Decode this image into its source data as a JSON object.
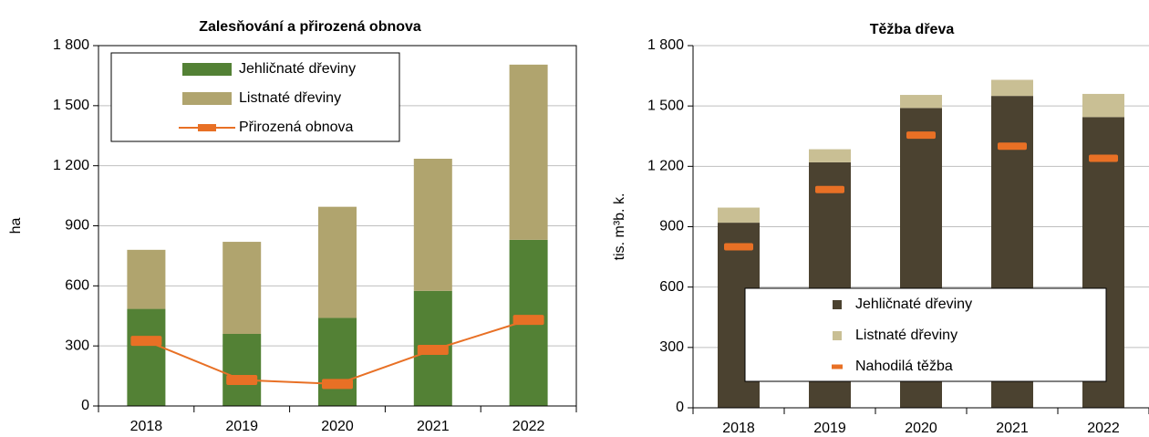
{
  "chart_data": [
    {
      "type": "bar",
      "title": "Zalesňování a přirozená obnova",
      "y_label": "ha",
      "categories": [
        "2018",
        "2019",
        "2020",
        "2021",
        "2022"
      ],
      "series": [
        {
          "name": "Jehličnaté dřeviny",
          "color": "#538135",
          "type": "bar",
          "values": [
            485,
            360,
            440,
            575,
            830
          ]
        },
        {
          "name": "Listnaté dřeviny",
          "color": "#b0a46e",
          "type": "bar",
          "values": [
            295,
            460,
            555,
            660,
            875
          ]
        },
        {
          "name": "Přirozená obnova",
          "color": "#e87025",
          "type": "line",
          "values": [
            325,
            130,
            110,
            280,
            430
          ]
        }
      ],
      "ylim": [
        0,
        1800
      ],
      "yticks": [
        0,
        300,
        600,
        900,
        {
          "value": 1200,
          "label": "1 200"
        },
        {
          "value": 1500,
          "label": "1 500"
        },
        {
          "value": 1800,
          "label": "1 800"
        }
      ],
      "grid": true,
      "legend": "top-left"
    },
    {
      "type": "bar",
      "title": "Těžba dřeva",
      "y_label": "tis. m³b. k.",
      "categories": [
        "2018",
        "2019",
        "2020",
        "2021",
        "2022"
      ],
      "series": [
        {
          "name": "Jehličnaté dřeviny",
          "color": "#4b4230",
          "type": "bar",
          "values": [
            920,
            1220,
            1490,
            1550,
            1445
          ]
        },
        {
          "name": "Listnaté dřeviny",
          "color": "#c9bf94",
          "type": "bar",
          "values": [
            75,
            65,
            65,
            80,
            115
          ]
        },
        {
          "name": "Nahodilá těžba",
          "color": "#e87025",
          "type": "marker",
          "values": [
            800,
            1085,
            1355,
            1300,
            1240
          ]
        }
      ],
      "ylim": [
        0,
        1800
      ],
      "yticks": [
        0,
        300,
        600,
        900,
        {
          "value": 1200,
          "label": "1 200"
        },
        {
          "value": 1500,
          "label": "1 500"
        },
        {
          "value": 1800,
          "label": "1 800"
        }
      ],
      "grid": true,
      "legend": "bottom-center"
    }
  ]
}
